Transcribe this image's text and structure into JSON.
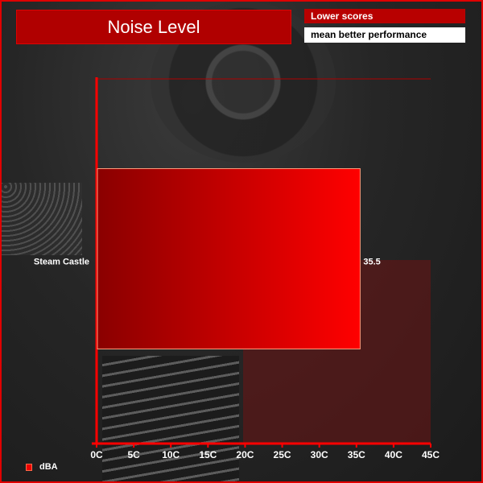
{
  "title": "Noise Level",
  "note": {
    "line1": "Lower scores",
    "line2": "mean better performance"
  },
  "colors": {
    "bar": "#e00000",
    "axis": "#ff0000",
    "border": "#e00000"
  },
  "chart_data": {
    "type": "bar",
    "orientation": "horizontal",
    "title": "Noise Level",
    "categories": [
      "Steam Castle"
    ],
    "series": [
      {
        "name": "dBA",
        "values": [
          35.5
        ]
      }
    ],
    "data_labels": [
      "35.5"
    ],
    "xlim": [
      0,
      45
    ],
    "x_ticks": [
      "0C",
      "5C",
      "10C",
      "15C",
      "20C",
      "25C",
      "30C",
      "35C",
      "40C",
      "45C"
    ],
    "legend": "bottom-left",
    "grid": false
  }
}
